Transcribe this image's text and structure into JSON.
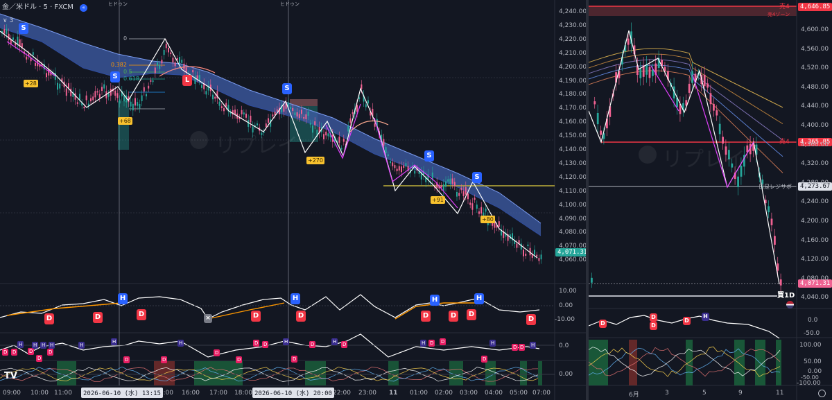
{
  "left_chart": {
    "symbol_title": "金／米ドル · 5 · FXCM",
    "indicator_count": "3",
    "top_markers": [
      "ヒドゥン",
      "ヒドゥン"
    ],
    "price_ticks": [
      "4,240.00",
      "4,230.00",
      "4,220.00",
      "4,210.00",
      "4,200.00",
      "4,190.00",
      "4,180.00",
      "4,170.00",
      "4,160.00",
      "4,150.00",
      "4,140.00",
      "4,130.00",
      "4,120.00",
      "4,110.00",
      "4,100.00",
      "4,090.00",
      "4,080.00",
      "4,070.00",
      "4,060.00"
    ],
    "current_price": "4,071.31",
    "fib_labels": [
      "0",
      "0.382",
      "0.5",
      "0.618"
    ],
    "time_ticks": [
      "09:00",
      "10:00",
      "11:00",
      "15:00",
      "16:00",
      "17:00",
      "18:00",
      "22:00",
      "23:00",
      "11",
      "01:00",
      "02:00",
      "03:00",
      "04:00",
      "05:00",
      "07:00"
    ],
    "crosshair_times": [
      "2026-06-10 (水)  13:15",
      "2026-06-10 (水)  20:00"
    ],
    "profit_badges": [
      "+28",
      "+68",
      "+270",
      "+91",
      "+80"
    ],
    "signal_labels": {
      "s": "S",
      "l": "L",
      "d": "D",
      "h": "H",
      "x": "×"
    },
    "osc1_ticks": [
      "10.00",
      "0.00",
      "-10.00"
    ],
    "osc2_ticks": [
      "0.0"
    ],
    "osc3_ticks": [
      "0.00"
    ],
    "watermark": "リプレイ",
    "logo": "TV"
  },
  "right_chart": {
    "price_ticks": [
      "4,600.00",
      "4,560.00",
      "4,520.00",
      "4,480.00",
      "4,440.00",
      "4,400.00",
      "4,360.00",
      "4,320.00",
      "4,280.00",
      "4,240.00",
      "4,200.00",
      "4,160.00",
      "4,120.00",
      "4,080.00",
      "4,040.00"
    ],
    "top_price": "4,646.85",
    "sell_level_top_label": "売4",
    "sell_level_top_sub": "売4ゾーン",
    "sell_level_mid_label": "売4",
    "sell_level_mid_price": "4,365.85",
    "support_label": "日足レジサポ",
    "support_price": "4,273.67",
    "current_price": "4,071.31",
    "buy_label": "買1D",
    "time_ticks": [
      "6月",
      "3",
      "5",
      "9",
      "11"
    ],
    "osc1_ticks": [
      "0.0",
      "-50.0"
    ],
    "osc2_ticks": [
      "100.00",
      "50.00",
      "0.00",
      "-50.00",
      "-100.00"
    ],
    "watermark": "リプレイ"
  },
  "colors": {
    "up": "#26a69a",
    "down": "#f06292",
    "ribbon": "#5b7bd5",
    "fib": "#ff9800",
    "sell": "#f23645",
    "signal_blue": "#2962ff",
    "profit": "#f9c22e"
  }
}
